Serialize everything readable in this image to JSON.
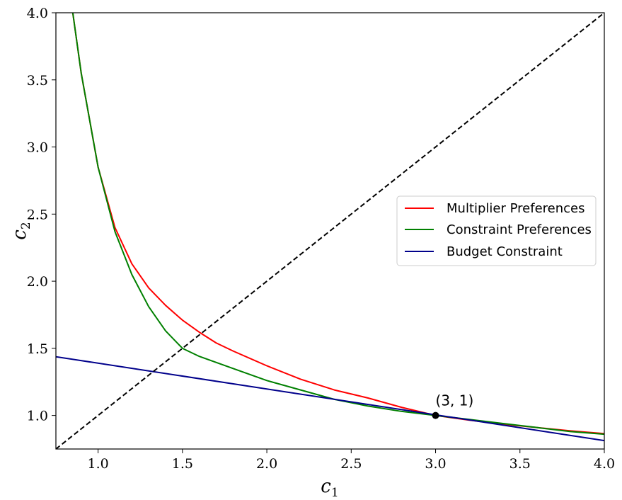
{
  "chart_data": {
    "type": "line",
    "xlabel": "c",
    "xlabel_sub": "1",
    "ylabel": "c",
    "ylabel_sub": "2",
    "xlim": [
      0.75,
      4.0
    ],
    "ylim": [
      0.75,
      4.0
    ],
    "x_ticks": [
      1.0,
      1.5,
      2.0,
      2.5,
      3.0,
      3.5,
      4.0
    ],
    "x_tick_labels": [
      "1.0",
      "1.5",
      "2.0",
      "2.5",
      "3.0",
      "3.5",
      "4.0"
    ],
    "y_ticks": [
      1.0,
      1.5,
      2.0,
      2.5,
      3.0,
      3.5,
      4.0
    ],
    "y_tick_labels": [
      "1.0",
      "1.5",
      "2.0",
      "2.5",
      "3.0",
      "3.5",
      "4.0"
    ],
    "grid": false,
    "legend_position": "center-right",
    "series": [
      {
        "name": "Multiplier Preferences",
        "color": "#ff0000",
        "x": [
          0.85,
          0.9,
          1.0,
          1.1,
          1.2,
          1.3,
          1.4,
          1.5,
          1.6,
          1.7,
          1.8,
          2.0,
          2.2,
          2.4,
          2.6,
          2.8,
          3.0,
          3.2,
          3.4,
          3.6,
          3.8,
          4.0
        ],
        "y": [
          4.0,
          3.55,
          2.85,
          2.4,
          2.13,
          1.95,
          1.82,
          1.71,
          1.62,
          1.54,
          1.48,
          1.37,
          1.27,
          1.19,
          1.13,
          1.06,
          1.0,
          0.965,
          0.935,
          0.91,
          0.885,
          0.865
        ]
      },
      {
        "name": "Constraint Preferences",
        "color": "#008000",
        "x": [
          0.85,
          0.9,
          1.0,
          1.1,
          1.2,
          1.3,
          1.4,
          1.5,
          1.6,
          1.8,
          2.0,
          2.2,
          2.4,
          2.6,
          2.8,
          3.0,
          3.2,
          3.4,
          3.6,
          3.8,
          4.0
        ],
        "y": [
          4.0,
          3.55,
          2.85,
          2.37,
          2.05,
          1.81,
          1.63,
          1.5,
          1.44,
          1.35,
          1.26,
          1.19,
          1.12,
          1.07,
          1.03,
          1.0,
          0.97,
          0.94,
          0.91,
          0.88,
          0.86
        ]
      },
      {
        "name": "Budget Constraint",
        "color": "#00008b",
        "x": [
          0.75,
          4.0
        ],
        "y": [
          1.4375,
          0.8125
        ]
      },
      {
        "name": "",
        "color": "#000000",
        "dash": true,
        "x": [
          0.75,
          4.0
        ],
        "y": [
          0.75,
          4.0
        ]
      }
    ],
    "points": [
      {
        "x": 3.0,
        "y": 1.0,
        "label": "(3, 1)",
        "color": "#000000"
      }
    ]
  }
}
